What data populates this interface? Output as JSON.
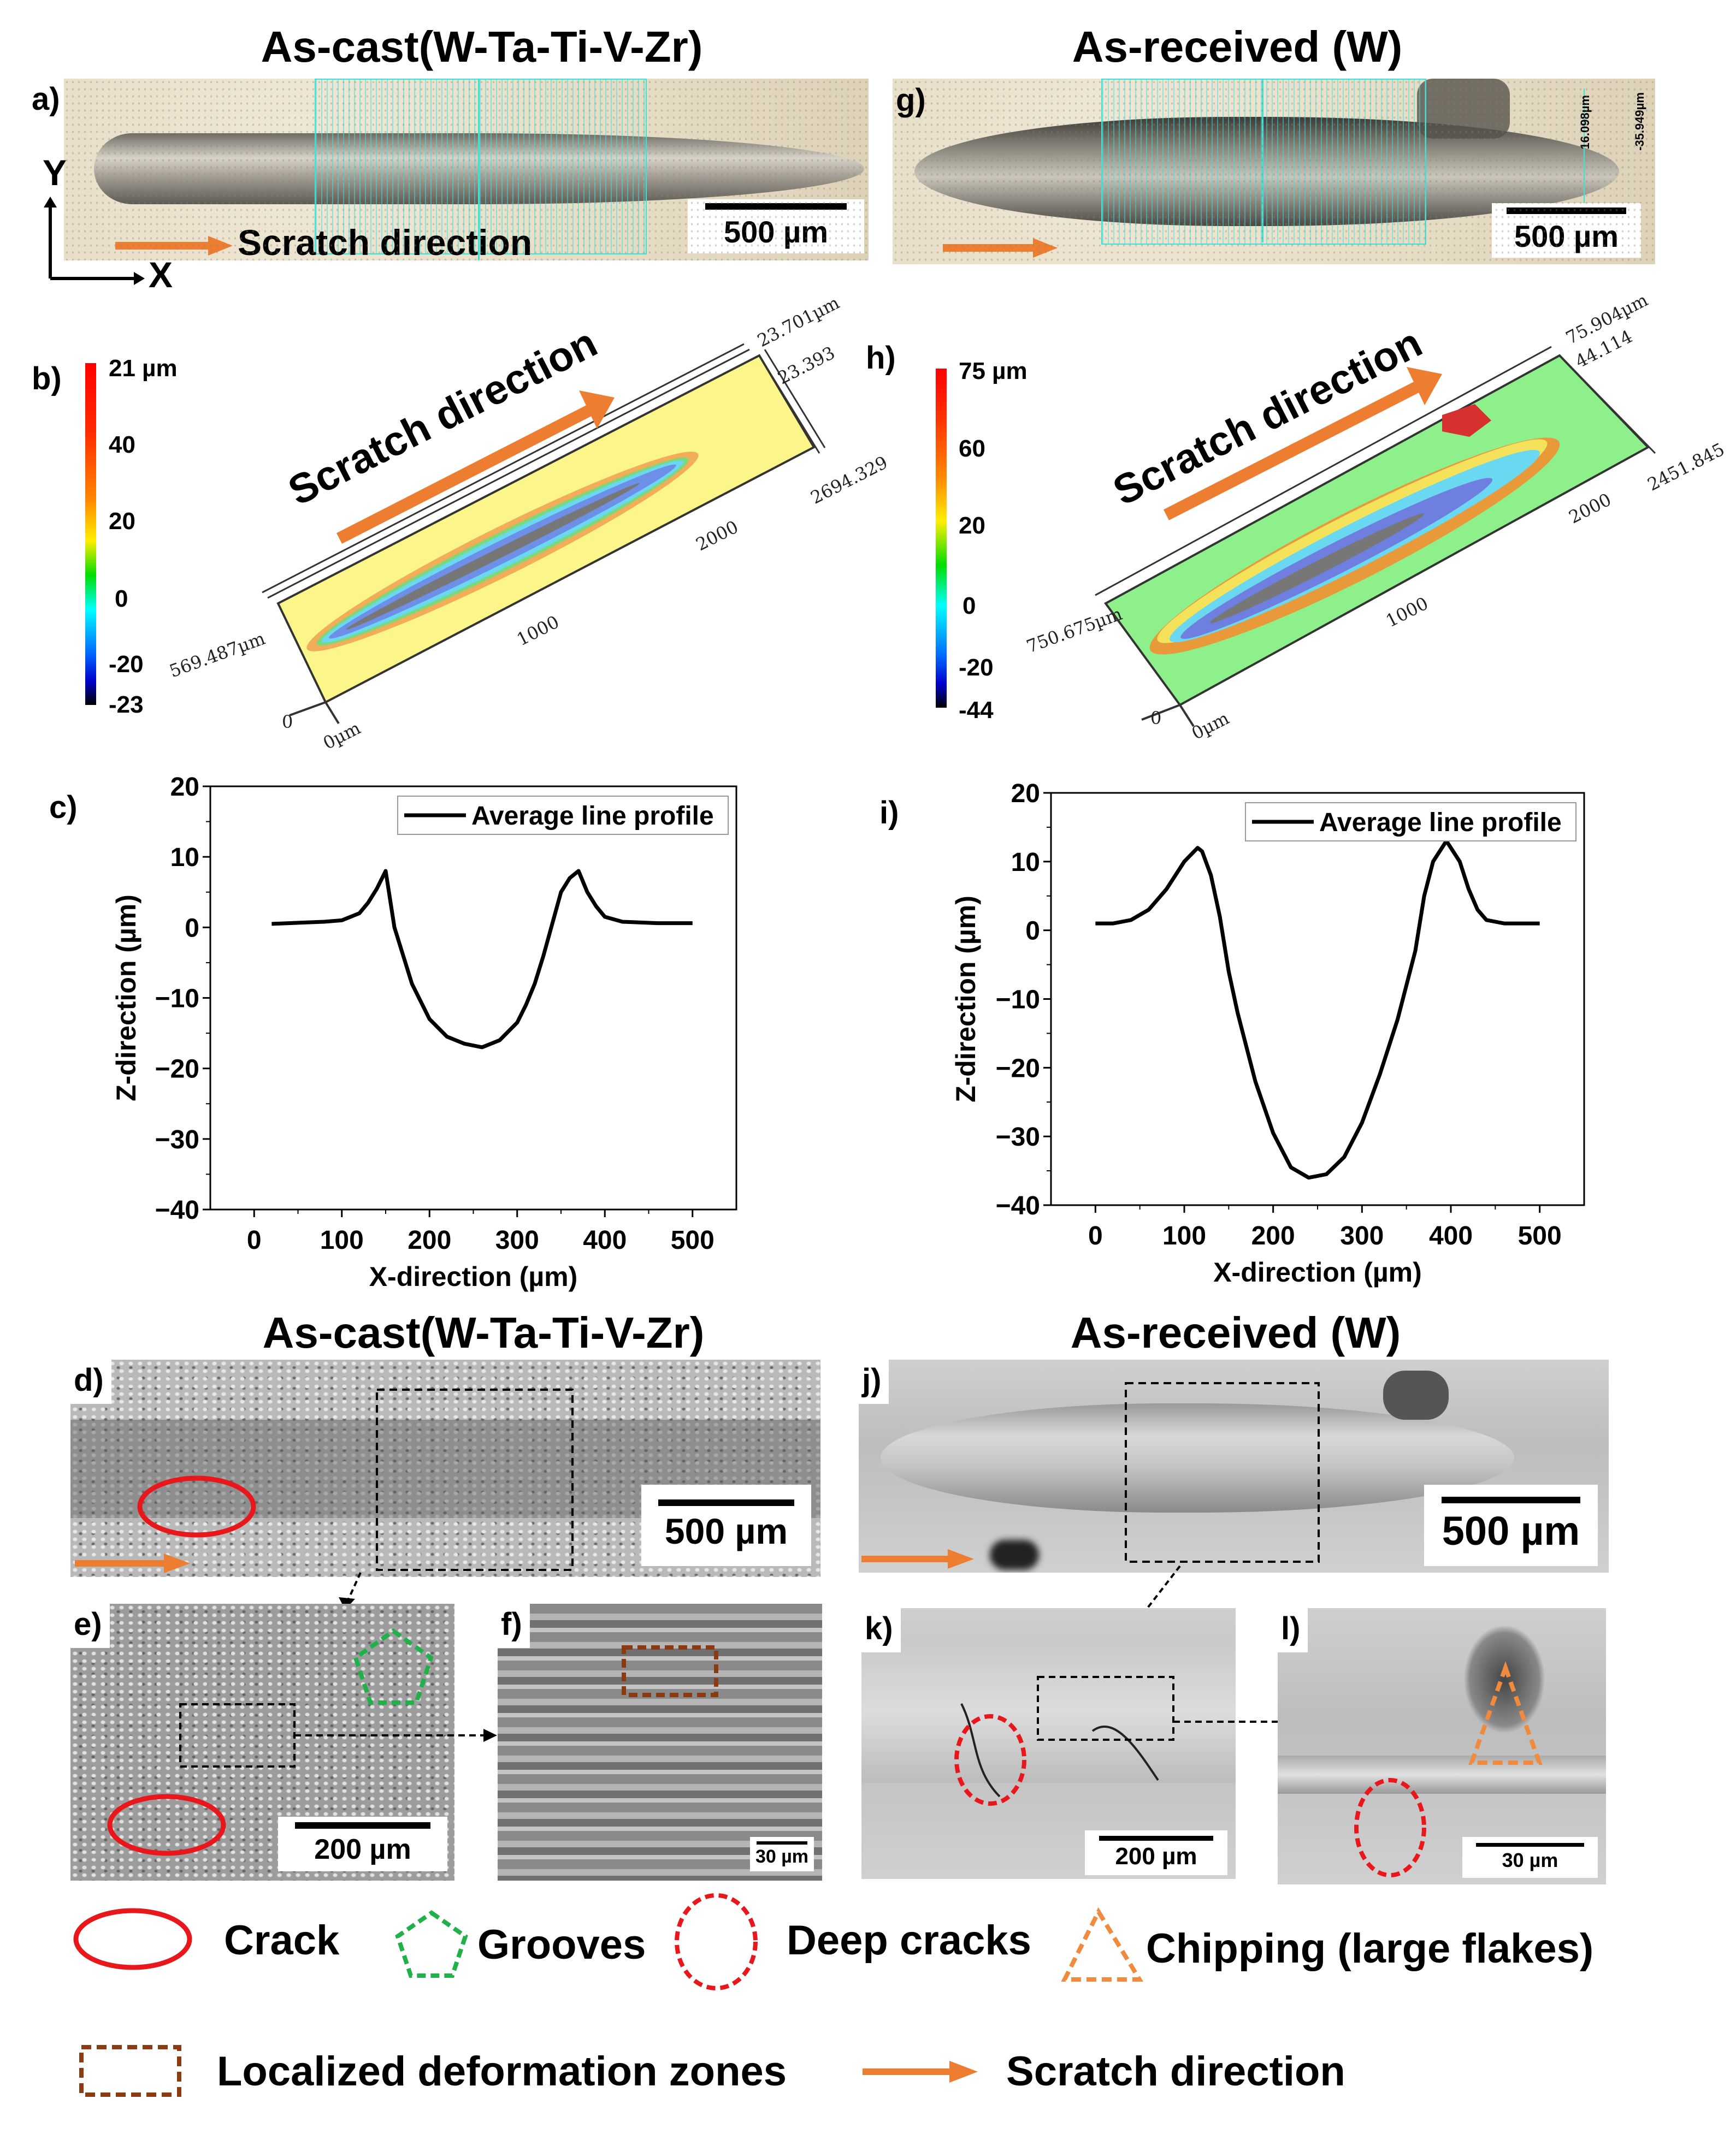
{
  "titles": {
    "top_left": "As-cast(W-Ta-Ti-V-Zr)",
    "top_right": "As-received (W)",
    "bottom_left": "As-cast(W-Ta-Ti-V-Zr)",
    "bottom_right": "As-received (W)"
  },
  "panel_labels": {
    "a": "a)",
    "b": "b)",
    "c": "c)",
    "d": "d)",
    "e": "e)",
    "f": "f)",
    "g": "g)",
    "h": "h)",
    "i": "i)",
    "j": "j)",
    "k": "k)",
    "l": "l)"
  },
  "panel_a": {
    "scale_bar": "500 µm",
    "scratch_label": "Scratch direction",
    "axis_y": "Y",
    "axis_x": "X"
  },
  "panel_g": {
    "scale_bar": "500 µm",
    "profile_max": "16.098µm",
    "profile_min": "-35.949µm"
  },
  "panel_b": {
    "colorbar_labels": [
      "21 µm",
      "40",
      "20",
      "0",
      "-20",
      "-23"
    ],
    "scratch_label": "Scratch direction",
    "axis": {
      "z_top": "23.701µm",
      "z_mid": "23.393",
      "x_end": "2694.329",
      "x_tick_2000": "2000",
      "x_tick_1000": "1000",
      "y_end": "569.487µm",
      "y_zero": "0",
      "x_zero": "0µm"
    },
    "surface_color": "#fbf58a"
  },
  "panel_h": {
    "colorbar_labels": [
      "75 µm",
      "60",
      "20",
      "0",
      "-20",
      "-44"
    ],
    "scratch_label": "Scratch direction",
    "axis": {
      "z_top": "75.904µm",
      "z_mid": "44.114",
      "x_end": "2451.845",
      "x_tick_2000": "2000",
      "x_tick_1000": "1000",
      "y_end": "750.675µm",
      "y_zero": "0",
      "x_zero": "0µm"
    },
    "surface_color": "#8ef08a"
  },
  "scale_bars": {
    "d": "500 µm",
    "e": "200 µm",
    "f": "30 µm",
    "j": "500 µm",
    "k": "200 µm",
    "l": "30 µm"
  },
  "legend": {
    "crack": "Crack",
    "grooves": "Grooves",
    "deep_cracks": "Deep cracks",
    "chipping": "Chipping (large flakes)",
    "deformation": "Localized deformation zones",
    "scratch_direction": "Scratch direction"
  },
  "colors": {
    "scratch_arrow": "#ED7D31",
    "crack": "#E8171B",
    "grooves": "#22B04B",
    "deformation": "#8B3A12",
    "chipping": "#F08A3C",
    "profile_overlay": "#3fe0d8"
  },
  "chart_data": [
    {
      "panel": "c",
      "type": "line",
      "xlabel": "X-direction (µm)",
      "ylabel": "Z-direction (µm)",
      "xlim": [
        -50,
        550
      ],
      "ylim": [
        -40,
        20
      ],
      "xticks": [
        0,
        100,
        200,
        300,
        400,
        500
      ],
      "yticks": [
        20,
        10,
        0,
        -10,
        -20,
        -30,
        -40
      ],
      "grid": false,
      "legend_position": "top-right",
      "series": [
        {
          "name": "Average line profile",
          "x": [
            20,
            60,
            80,
            100,
            120,
            130,
            140,
            150,
            160,
            170,
            180,
            190,
            200,
            220,
            240,
            260,
            280,
            300,
            310,
            320,
            330,
            340,
            350,
            360,
            370,
            380,
            390,
            400,
            420,
            460,
            500
          ],
          "y": [
            0.5,
            0.7,
            0.8,
            1,
            2,
            3.5,
            5.5,
            8,
            0,
            -4,
            -8,
            -10.5,
            -13,
            -15.5,
            -16.5,
            -17,
            -16,
            -13.5,
            -11,
            -8,
            -4,
            0.5,
            5,
            7,
            8,
            5,
            3,
            1.5,
            0.8,
            0.6,
            0.6
          ]
        }
      ]
    },
    {
      "panel": "i",
      "type": "line",
      "xlabel": "X-direction (µm)",
      "ylabel": "Z-direction (µm)",
      "xlim": [
        -50,
        550
      ],
      "ylim": [
        -40,
        20
      ],
      "xticks": [
        0,
        100,
        200,
        300,
        400,
        500
      ],
      "yticks": [
        20,
        10,
        0,
        -10,
        -20,
        -30,
        -40
      ],
      "grid": false,
      "legend_position": "top-right",
      "series": [
        {
          "name": "Average line profile",
          "x": [
            0,
            20,
            40,
            60,
            80,
            100,
            115,
            120,
            130,
            140,
            150,
            160,
            170,
            180,
            200,
            220,
            240,
            260,
            280,
            300,
            320,
            340,
            360,
            370,
            380,
            395,
            410,
            420,
            430,
            440,
            460,
            500
          ],
          "y": [
            1,
            1,
            1.5,
            3,
            6,
            10,
            12,
            11.5,
            8,
            2,
            -6,
            -12,
            -17,
            -22,
            -29.5,
            -34.5,
            -36,
            -35.5,
            -33,
            -28,
            -21,
            -13,
            -3,
            5,
            10,
            13,
            10,
            6,
            3,
            1.5,
            1,
            1
          ]
        }
      ]
    }
  ]
}
